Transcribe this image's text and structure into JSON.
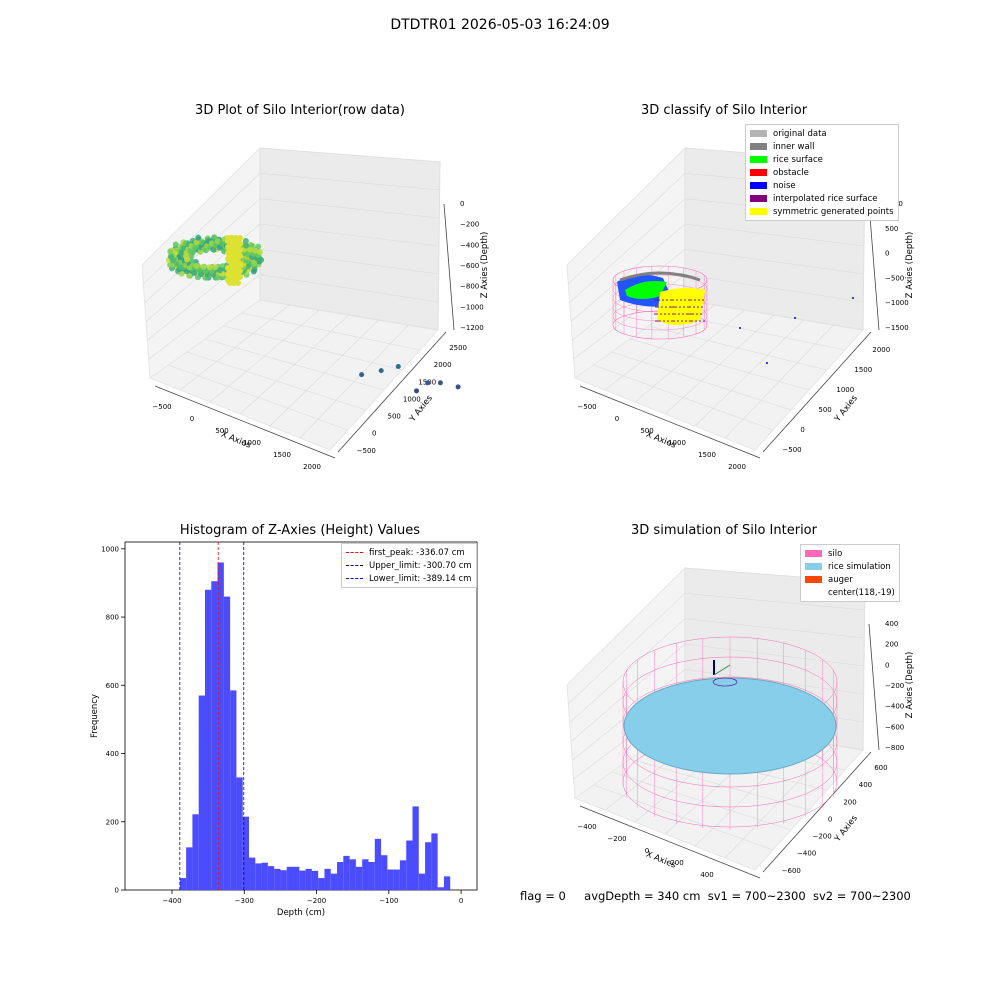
{
  "figure_title": "DTDTR01 2026-05-03 16:24:09",
  "footer": {
    "flag": "flag = 0",
    "avg_depth": "avgDepth = 340 cm",
    "sv1": "sv1 = 700~2300",
    "sv2": "sv2 = 700~2300"
  },
  "chart_data": [
    {
      "type": "scatter",
      "title": "3D Plot of Silo Interior(row data)",
      "xlabel": "X Axies",
      "ylabel": "Y Axies",
      "zlabel": "Z Axies (Depth)",
      "x_ticks": [
        "−500",
        "0",
        "500",
        "1000",
        "1500",
        "2000"
      ],
      "y_ticks": [
        "−500",
        "0",
        "500",
        "1000",
        "1500",
        "2000",
        "2500"
      ],
      "z_ticks": [
        "0",
        "−200",
        "−400",
        "−600",
        "−800",
        "−1000",
        "−1200"
      ],
      "colormap": "viridis",
      "xlim": [
        -600,
        2000
      ],
      "ylim": [
        -600,
        2600
      ],
      "zlim": [
        -1300,
        50
      ],
      "outlier_points": [
        {
          "x": 420,
          "y": 1900,
          "z": -1050
        },
        {
          "x": 700,
          "y": 1700,
          "z": -1000
        },
        {
          "x": 950,
          "y": 1500,
          "z": -950
        },
        {
          "x": 1300,
          "y": 2400,
          "z": -1150
        },
        {
          "x": 1200,
          "y": 2100,
          "z": -1150
        },
        {
          "x": 1100,
          "y": 1900,
          "z": -1250
        },
        {
          "x": 1500,
          "y": 2500,
          "z": -1200
        }
      ]
    },
    {
      "type": "scatter",
      "title": "3D classify of Silo Interior",
      "xlabel": "X Axies",
      "ylabel": "Y Axies",
      "zlabel": "Z Axies (Depth)",
      "x_ticks": [
        "−500",
        "0",
        "500",
        "1000",
        "1500",
        "2000"
      ],
      "y_ticks": [
        "−500",
        "0",
        "500",
        "1000",
        "1500",
        "2000"
      ],
      "z_ticks": [
        "1000",
        "500",
        "0",
        "−500",
        "−1000",
        "−1500"
      ],
      "legend": [
        {
          "label": "original data",
          "color": "#b3b3b3"
        },
        {
          "label": "inner wall",
          "color": "#808080"
        },
        {
          "label": "rice surface",
          "color": "#00ff00"
        },
        {
          "label": "obstacle",
          "color": "#ff0000"
        },
        {
          "label": "noise",
          "color": "#0000ff"
        },
        {
          "label": "interpolated rice surface",
          "color": "#800080"
        },
        {
          "label": "symmetric generated points",
          "color": "#ffff00"
        }
      ],
      "colors": {
        "wireframe": "#ff69b4"
      }
    },
    {
      "type": "bar",
      "title": "Histogram of Z-Axies (Height) Values",
      "xlabel": "Depth (cm)",
      "ylabel": "Frequency",
      "xlim": [
        -465,
        22
      ],
      "ylim": [
        0,
        1020
      ],
      "x_ticks": [
        -400,
        -300,
        -200,
        -100,
        0
      ],
      "x_tick_labels": [
        "−400",
        "−300",
        "−200",
        "−100",
        "0"
      ],
      "y_ticks": [
        0,
        200,
        400,
        600,
        800,
        1000
      ],
      "y_tick_labels": [
        "0",
        "200",
        "400",
        "600",
        "800",
        "1000"
      ],
      "bar_color": "#4c4cff",
      "bin_start": -389.14,
      "bin_width": 8.7,
      "values": [
        35,
        125,
        222,
        570,
        880,
        905,
        960,
        860,
        585,
        330,
        215,
        95,
        78,
        80,
        70,
        62,
        58,
        68,
        68,
        57,
        62,
        56,
        35,
        62,
        48,
        82,
        100,
        90,
        68,
        90,
        82,
        150,
        102,
        60,
        60,
        87,
        145,
        245,
        48,
        140,
        166,
        8,
        40
      ],
      "lines": [
        {
          "label": "first_peak: -336.07 cm",
          "x": -336.07,
          "color": "#ff0000"
        },
        {
          "label": "Upper_limit: -300.70 cm",
          "x": -300.7,
          "color": "#00008b"
        },
        {
          "label": "Lower_limit: -389.14 cm",
          "x": -389.14,
          "color": "#00008b"
        }
      ]
    },
    {
      "type": "scatter",
      "title": "3D simulation of Silo Interior",
      "xlabel": "X Axies",
      "ylabel": "Y Axies",
      "zlabel": "Z Axies (Depth)",
      "x_ticks": [
        "−400",
        "−200",
        "0",
        "200",
        "400",
        "600"
      ],
      "y_ticks": [
        "−600",
        "−400",
        "−200",
        "0",
        "200",
        "400",
        "600"
      ],
      "z_ticks": [
        "400",
        "200",
        "0",
        "−200",
        "−400",
        "−600",
        "−800"
      ],
      "legend": [
        {
          "label": "silo",
          "color": "#ff69b4"
        },
        {
          "label": "rice simulation",
          "color": "#87ceeb"
        },
        {
          "label": "auger",
          "color": "#ff4500"
        },
        {
          "label": "center(118,-19)",
          "color": ""
        }
      ]
    }
  ]
}
